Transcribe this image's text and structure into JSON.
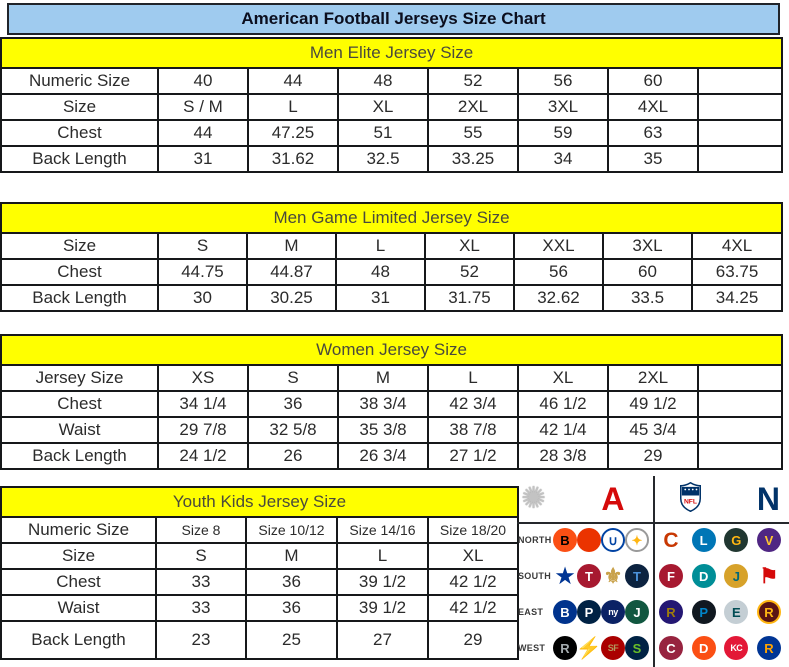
{
  "title": "American Football Jerseys Size Chart",
  "colors": {
    "title_bar_bg": "#9fcbef",
    "band_bg": "#ffff00",
    "border": "#16181a",
    "afc_red": "#d50a0a",
    "nfc_blue": "#013369"
  },
  "chart_data": [
    {
      "type": "table",
      "title": "Men Elite Jersey Size",
      "rows": [
        [
          "Numeric Size",
          "40",
          "44",
          "48",
          "52",
          "56",
          "60",
          ""
        ],
        [
          "Size",
          "S / M",
          "L",
          "XL",
          "2XL",
          "3XL",
          "4XL",
          ""
        ],
        [
          "Chest",
          "44",
          "47.25",
          "51",
          "55",
          "59",
          "63",
          ""
        ],
        [
          "Back Length",
          "31",
          "31.62",
          "32.5",
          "33.25",
          "34",
          "35",
          ""
        ]
      ]
    },
    {
      "type": "table",
      "title": "Men Game Limited Jersey Size",
      "rows": [
        [
          "Size",
          "S",
          "M",
          "L",
          "XL",
          "XXL",
          "3XL",
          "4XL"
        ],
        [
          "Chest",
          "44.75",
          "44.87",
          "48",
          "52",
          "56",
          "60",
          "63.75"
        ],
        [
          "Back Length",
          "30",
          "30.25",
          "31",
          "31.75",
          "32.62",
          "33.5",
          "34.25"
        ]
      ]
    },
    {
      "type": "table",
      "title": "Women Jersey Size",
      "rows": [
        [
          "Jersey Size",
          "XS",
          "S",
          "M",
          "L",
          "XL",
          "2XL",
          ""
        ],
        [
          "Chest",
          "34 1/4",
          "36",
          "38 3/4",
          "42 3/4",
          "46 1/2",
          "49 1/2",
          ""
        ],
        [
          "Waist",
          "29 7/8",
          "32 5/8",
          "35 3/8",
          "38 7/8",
          "42 1/4",
          "45 3/4",
          ""
        ],
        [
          "Back Length",
          "24 1/2",
          "26",
          "26 3/4",
          "27 1/2",
          "28 3/8",
          "29",
          ""
        ]
      ]
    },
    {
      "type": "table",
      "title": "Youth Kids Jersey Size",
      "rows": [
        [
          "Numeric Size",
          "Size 8",
          "Size 10/12",
          "Size 14/16",
          "Size 18/20"
        ],
        [
          "Size",
          "S",
          "M",
          "L",
          "XL"
        ],
        [
          "Chest",
          "33",
          "36",
          "39 1/2",
          "42 1/2"
        ],
        [
          "Waist",
          "33",
          "36",
          "39 1/2",
          "42 1/2"
        ],
        [
          "Back Length",
          "23",
          "25",
          "27",
          "29"
        ]
      ]
    }
  ],
  "logo_panel": {
    "header": {
      "starburst_icon": "✺",
      "afc_letter": "A",
      "afc_color": "#d50a0a",
      "nfl_label": "NFL",
      "nfc_letter": "N",
      "nfc_color": "#013369"
    },
    "rows": [
      {
        "label": "NORTH",
        "afc": [
          {
            "name": "bengals",
            "glyph": "B",
            "fg": "#000000",
            "bg": "#fb4f14"
          },
          {
            "name": "browns",
            "glyph": "",
            "fg": "#ffffff",
            "bg": "#eb3300"
          },
          {
            "name": "colts",
            "glyph": "∪",
            "fg": "#0143a3",
            "bg": "#ffffff",
            "border": "#0143a3"
          },
          {
            "name": "steelers",
            "glyph": "✦",
            "fg": "#ffb612",
            "bg": "#ffffff",
            "border": "#9a9a9a"
          }
        ],
        "nfc": [
          {
            "name": "bears",
            "glyph": "C",
            "fg": "#c83803",
            "plain": true
          },
          {
            "name": "lions",
            "glyph": "L",
            "fg": "#ffffff",
            "bg": "#0076b6"
          },
          {
            "name": "packers",
            "glyph": "G",
            "fg": "#ffb612",
            "bg": "#203731"
          },
          {
            "name": "vikings",
            "glyph": "V",
            "fg": "#ffc62f",
            "bg": "#4f2683"
          }
        ]
      },
      {
        "label": "SOUTH",
        "afc": [
          {
            "name": "cowboys",
            "glyph": "★",
            "fg": "#003594",
            "plain": true
          },
          {
            "name": "texans",
            "glyph": "T",
            "fg": "#ffffff",
            "bg": "#a71930"
          },
          {
            "name": "saints",
            "glyph": "⚜",
            "fg": "#c9a24b",
            "plain": true
          },
          {
            "name": "titans",
            "glyph": "T",
            "fg": "#4b92db",
            "bg": "#0c2340"
          }
        ],
        "nfc": [
          {
            "name": "falcons",
            "glyph": "F",
            "fg": "#ffffff",
            "bg": "#a71930"
          },
          {
            "name": "dolphins",
            "glyph": "D",
            "fg": "#ffffff",
            "bg": "#008e97"
          },
          {
            "name": "jaguars",
            "glyph": "J",
            "fg": "#006778",
            "bg": "#d7a22a"
          },
          {
            "name": "buccaneers",
            "glyph": "⚑",
            "fg": "#d50a0a",
            "plain": true
          }
        ]
      },
      {
        "label": "EAST",
        "afc": [
          {
            "name": "bills",
            "glyph": "B",
            "fg": "#ffffff",
            "bg": "#00338d"
          },
          {
            "name": "patriots",
            "glyph": "P",
            "fg": "#ffffff",
            "bg": "#002244"
          },
          {
            "name": "giants",
            "glyph": "ny",
            "fg": "#ffffff",
            "bg": "#0b2265"
          },
          {
            "name": "jets",
            "glyph": "J",
            "fg": "#ffffff",
            "bg": "#115740"
          }
        ],
        "nfc": [
          {
            "name": "ravens",
            "glyph": "R",
            "fg": "#9e7c0c",
            "bg": "#241773"
          },
          {
            "name": "panthers",
            "glyph": "P",
            "fg": "#0085ca",
            "bg": "#101820"
          },
          {
            "name": "eagles",
            "glyph": "E",
            "fg": "#004c54",
            "bg": "#c4ced4"
          },
          {
            "name": "redskins",
            "glyph": "R",
            "fg": "#ffb612",
            "bg": "#5a1414",
            "border": "#ffb612"
          }
        ]
      },
      {
        "label": "WEST",
        "afc": [
          {
            "name": "raiders",
            "glyph": "R",
            "fg": "#a5acaf",
            "bg": "#000000"
          },
          {
            "name": "chargers",
            "glyph": "⚡",
            "fg": "#f2a900",
            "plain": true
          },
          {
            "name": "49ers",
            "glyph": "SF",
            "fg": "#b3995d",
            "bg": "#aa0000"
          },
          {
            "name": "seahawks",
            "glyph": "S",
            "fg": "#69be28",
            "bg": "#002244"
          }
        ],
        "nfc": [
          {
            "name": "cardinals",
            "glyph": "C",
            "fg": "#ffffff",
            "bg": "#97233f"
          },
          {
            "name": "broncos",
            "glyph": "D",
            "fg": "#ffffff",
            "bg": "#fb4f14"
          },
          {
            "name": "chiefs",
            "glyph": "KC",
            "fg": "#ffffff",
            "bg": "#e31837"
          },
          {
            "name": "rams",
            "glyph": "R",
            "fg": "#ffa300",
            "bg": "#003594"
          }
        ]
      }
    ]
  }
}
